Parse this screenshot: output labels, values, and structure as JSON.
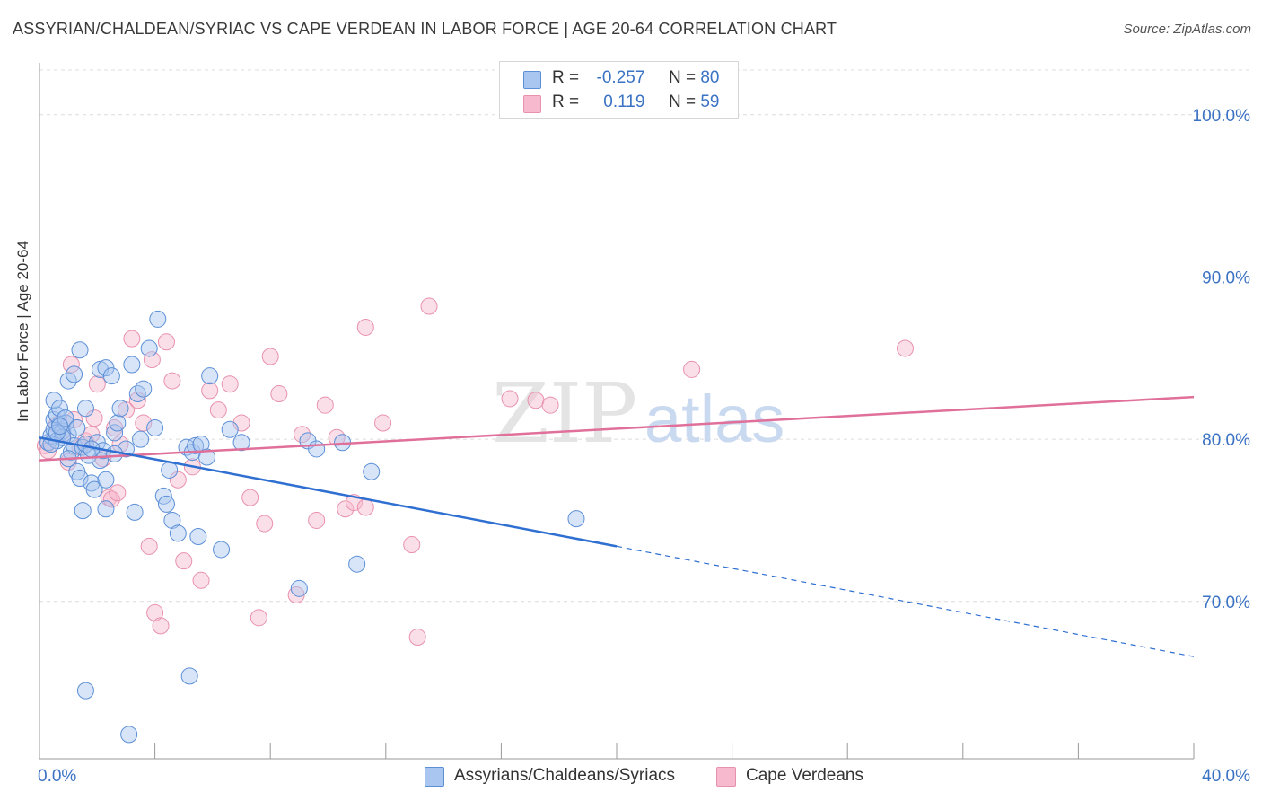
{
  "title": "ASSYRIAN/CHALDEAN/SYRIAC VS CAPE VERDEAN IN LABOR FORCE | AGE 20-64 CORRELATION CHART",
  "source": "Source: ZipAtlas.com",
  "watermark": {
    "zip": "ZIP",
    "atlas": "atlas"
  },
  "stats": [
    {
      "r_label": "R =",
      "r_value": "-0.257",
      "n_label": "N =",
      "n_value": "80"
    },
    {
      "r_label": "R =",
      "r_value": "0.119",
      "n_label": "N =",
      "n_value": "59"
    }
  ],
  "legend": [
    {
      "label": "Assyrians/Chaldeans/Syriacs"
    },
    {
      "label": "Cape Verdeans"
    }
  ],
  "colors": {
    "blue_fill": "#a9c6f0",
    "blue_stroke": "#5b8fd6",
    "blue_line": "#2e6fd1",
    "pink_fill": "#f7b9cd",
    "pink_stroke": "#e891ad",
    "pink_line": "#e0709a",
    "tick_label": "#3a72c4",
    "grid": "#dcdcdc"
  },
  "chart_data": {
    "type": "scatter",
    "title": "ASSYRIAN/CHALDEAN/SYRIAC VS CAPE VERDEAN IN LABOR FORCE | AGE 20-64 CORRELATION CHART",
    "xlabel": "",
    "ylabel": "In Labor Force | Age 20-64",
    "xlim": [
      0,
      40
    ],
    "ylim": [
      60.3,
      103.2
    ],
    "x_tick_labels": [
      "0.0%",
      "40.0%"
    ],
    "y_ticks": [
      70,
      80,
      90,
      100
    ],
    "y_tick_labels": [
      "70.0%",
      "80.0%",
      "90.0%",
      "100.0%"
    ],
    "grid": true,
    "legend_position": "bottom-center",
    "series": [
      {
        "name": "Assyrians/Chaldeans/Syriacs",
        "r": -0.257,
        "n": 80,
        "trend": {
          "x0": 0,
          "y0": 80.1,
          "x1": 20,
          "y1": 73.4,
          "dashed_to_x": 40,
          "dashed_to_y": 66.6
        },
        "points": [
          [
            0.3,
            79.8
          ],
          [
            0.4,
            80.2
          ],
          [
            0.5,
            80.6
          ],
          [
            0.6,
            79.9
          ],
          [
            0.5,
            81.2
          ],
          [
            0.7,
            80.9
          ],
          [
            0.8,
            80.5
          ],
          [
            0.6,
            81.5
          ],
          [
            0.9,
            81.0
          ],
          [
            1.0,
            80.3
          ],
          [
            0.5,
            82.4
          ],
          [
            0.7,
            81.9
          ],
          [
            1.1,
            79.2
          ],
          [
            1.2,
            79.6
          ],
          [
            1.3,
            78.0
          ],
          [
            1.4,
            77.6
          ],
          [
            1.5,
            79.5
          ],
          [
            1.6,
            79.7
          ],
          [
            1.7,
            79.0
          ],
          [
            1.8,
            77.3
          ],
          [
            1.9,
            76.9
          ],
          [
            2.0,
            79.8
          ],
          [
            2.1,
            78.7
          ],
          [
            2.2,
            79.3
          ],
          [
            2.3,
            77.5
          ],
          [
            1.0,
            83.6
          ],
          [
            1.2,
            84.0
          ],
          [
            1.4,
            85.5
          ],
          [
            2.1,
            84.3
          ],
          [
            2.3,
            84.4
          ],
          [
            2.5,
            83.9
          ],
          [
            2.6,
            80.4
          ],
          [
            2.7,
            81.0
          ],
          [
            2.8,
            81.9
          ],
          [
            3.0,
            79.4
          ],
          [
            3.2,
            84.6
          ],
          [
            3.4,
            82.8
          ],
          [
            3.5,
            80.0
          ],
          [
            3.6,
            83.1
          ],
          [
            3.8,
            85.6
          ],
          [
            4.0,
            80.7
          ],
          [
            4.1,
            87.4
          ],
          [
            4.3,
            76.5
          ],
          [
            4.4,
            76.0
          ],
          [
            4.5,
            78.1
          ],
          [
            4.6,
            75.0
          ],
          [
            4.8,
            74.2
          ],
          [
            5.1,
            79.5
          ],
          [
            5.3,
            79.2
          ],
          [
            5.4,
            79.6
          ],
          [
            5.5,
            74.0
          ],
          [
            5.6,
            79.7
          ],
          [
            5.8,
            78.9
          ],
          [
            5.9,
            83.9
          ],
          [
            6.3,
            73.2
          ],
          [
            6.6,
            80.6
          ],
          [
            7.0,
            79.8
          ],
          [
            9.0,
            70.8
          ],
          [
            9.3,
            79.9
          ],
          [
            9.6,
            79.4
          ],
          [
            10.5,
            79.8
          ],
          [
            11.0,
            72.3
          ],
          [
            11.5,
            78.0
          ],
          [
            1.5,
            75.6
          ],
          [
            2.3,
            75.7
          ],
          [
            3.3,
            75.5
          ],
          [
            1.6,
            64.5
          ],
          [
            3.1,
            61.8
          ],
          [
            5.2,
            65.4
          ],
          [
            18.6,
            75.1
          ],
          [
            0.8,
            80.1
          ],
          [
            1.8,
            79.4
          ],
          [
            2.6,
            79.1
          ],
          [
            0.9,
            81.3
          ],
          [
            1.3,
            80.7
          ],
          [
            0.4,
            79.7
          ],
          [
            1.0,
            78.8
          ],
          [
            0.6,
            80.4
          ],
          [
            1.6,
            81.9
          ],
          [
            0.7,
            80.8
          ]
        ]
      },
      {
        "name": "Cape Verdeans",
        "r": 0.119,
        "n": 59,
        "trend": {
          "x0": 0,
          "y0": 78.7,
          "x1": 40,
          "y1": 82.6
        },
        "points": [
          [
            0.2,
            79.6
          ],
          [
            0.3,
            79.3
          ],
          [
            0.6,
            80.9
          ],
          [
            0.8,
            80.3
          ],
          [
            1.0,
            78.6
          ],
          [
            1.2,
            81.2
          ],
          [
            1.4,
            79.5
          ],
          [
            1.6,
            79.9
          ],
          [
            1.8,
            80.3
          ],
          [
            1.9,
            81.3
          ],
          [
            2.0,
            83.4
          ],
          [
            2.2,
            78.8
          ],
          [
            2.4,
            76.4
          ],
          [
            2.5,
            76.3
          ],
          [
            2.6,
            80.7
          ],
          [
            2.7,
            76.7
          ],
          [
            2.8,
            79.7
          ],
          [
            3.0,
            81.8
          ],
          [
            3.2,
            86.2
          ],
          [
            3.4,
            82.4
          ],
          [
            3.6,
            81.0
          ],
          [
            3.8,
            73.4
          ],
          [
            3.9,
            84.9
          ],
          [
            4.0,
            69.3
          ],
          [
            4.2,
            68.5
          ],
          [
            4.4,
            86.0
          ],
          [
            4.6,
            83.6
          ],
          [
            4.8,
            77.5
          ],
          [
            5.0,
            72.5
          ],
          [
            5.3,
            78.3
          ],
          [
            5.6,
            71.3
          ],
          [
            5.9,
            83.0
          ],
          [
            6.2,
            81.8
          ],
          [
            6.6,
            83.4
          ],
          [
            7.0,
            81.0
          ],
          [
            7.3,
            76.4
          ],
          [
            7.6,
            69.0
          ],
          [
            7.8,
            74.8
          ],
          [
            8.0,
            85.1
          ],
          [
            8.3,
            82.8
          ],
          [
            8.9,
            70.4
          ],
          [
            9.1,
            80.3
          ],
          [
            9.6,
            75.0
          ],
          [
            9.9,
            82.1
          ],
          [
            10.3,
            80.1
          ],
          [
            10.6,
            75.7
          ],
          [
            10.9,
            76.1
          ],
          [
            11.3,
            75.8
          ],
          [
            11.3,
            86.9
          ],
          [
            11.9,
            81.0
          ],
          [
            12.9,
            73.5
          ],
          [
            13.1,
            67.8
          ],
          [
            13.5,
            88.2
          ],
          [
            16.3,
            82.5
          ],
          [
            17.2,
            82.4
          ],
          [
            17.7,
            82.1
          ],
          [
            22.6,
            84.3
          ],
          [
            30.0,
            85.6
          ],
          [
            1.1,
            84.6
          ]
        ]
      }
    ]
  }
}
